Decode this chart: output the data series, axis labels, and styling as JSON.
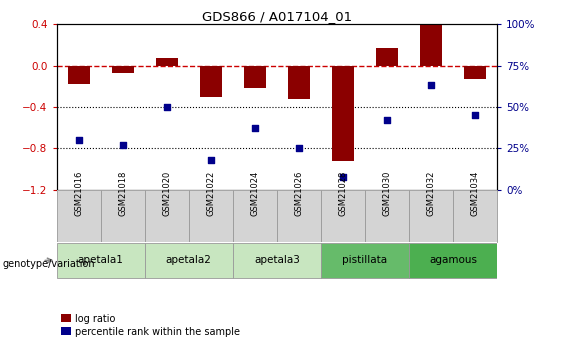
{
  "title": "GDS866 / A017104_01",
  "samples": [
    "GSM21016",
    "GSM21018",
    "GSM21020",
    "GSM21022",
    "GSM21024",
    "GSM21026",
    "GSM21028",
    "GSM21030",
    "GSM21032",
    "GSM21034"
  ],
  "log_ratio": [
    -0.18,
    -0.07,
    0.07,
    -0.3,
    -0.22,
    -0.32,
    -0.92,
    0.17,
    0.39,
    -0.13
  ],
  "percentile_rank": [
    30,
    27,
    50,
    18,
    37,
    25,
    8,
    42,
    63,
    45
  ],
  "groups": [
    {
      "label": "apetala1",
      "start": 0,
      "end": 1,
      "color": "#c8e6c0"
    },
    {
      "label": "apetala2",
      "start": 2,
      "end": 3,
      "color": "#c8e6c0"
    },
    {
      "label": "apetala3",
      "start": 4,
      "end": 5,
      "color": "#c8e6c0"
    },
    {
      "label": "pistillata",
      "start": 6,
      "end": 7,
      "color": "#66bb6a"
    },
    {
      "label": "agamous",
      "start": 8,
      "end": 9,
      "color": "#4caf50"
    }
  ],
  "ylim_left": [
    -1.2,
    0.4
  ],
  "ylim_right": [
    0,
    100
  ],
  "bar_color": "#8B0000",
  "dot_color": "#00008B",
  "zero_line_color": "#cc0000",
  "dotted_line_color": "black",
  "sample_box_color": "#d4d4d4",
  "legend_label_bar": "log ratio",
  "legend_label_dot": "percentile rank within the sample"
}
